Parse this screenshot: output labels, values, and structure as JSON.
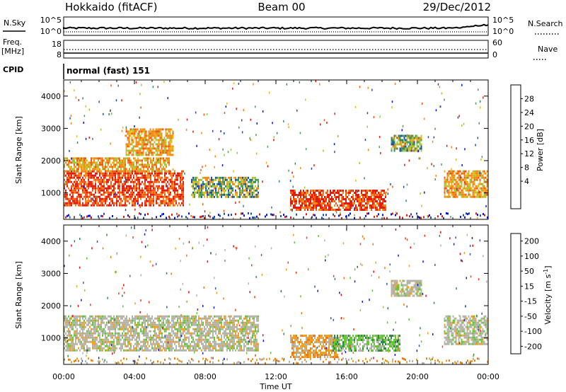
{
  "header": {
    "left": "Hokkaido (fitACF)",
    "center": "Beam 00",
    "right": "29/Dec/2012"
  },
  "top_panels": {
    "nsky_label": "N.Sky",
    "nsky_ticks": [
      "10^5",
      "10^0"
    ],
    "nsearch_label": "N.Search",
    "nsearch_ticks": [
      "10^5",
      "10^0"
    ],
    "freq_label_1": "Freq.",
    "freq_label_2": "[MHz]",
    "freq_ticks": [
      "18",
      "8"
    ],
    "nave_label": "Nave",
    "nave_ticks": [
      "60",
      "0"
    ],
    "cpid_label": "CPID",
    "cpid_value": "normal (fast) 151"
  },
  "colors": {
    "power": [
      "#0018e0",
      "#1e4cb0",
      "#2f8a66",
      "#4aa05a",
      "#9cc83c",
      "#e8b81a",
      "#f58a18",
      "#f05a14",
      "#e01e10"
    ],
    "velocity": [
      "#1020c8",
      "#2a60a8",
      "#2f8a4a",
      "#64c832",
      "#b4b4aa",
      "#f0a020",
      "#f07a10",
      "#f04010",
      "#e01010"
    ]
  },
  "chart_data": [
    {
      "type": "heatmap",
      "ylabel": "Slant Range [km]",
      "ylim": [
        180,
        4500
      ],
      "y_ticks": [
        "4000",
        "3000",
        "2000",
        "1000"
      ],
      "x_ticks": [
        "00:00",
        "04:00",
        "08:00",
        "12:00",
        "16:00",
        "20:00",
        "00:00"
      ],
      "xlim": [
        "00:00",
        "24:00"
      ],
      "colorbar": {
        "label": "Power [dB]",
        "ticks": [
          "28",
          "24",
          "20",
          "16",
          "12",
          "8",
          "4"
        ],
        "range": [
          0,
          32
        ]
      },
      "regions": [
        {
          "t": [
            0.0,
            6.8
          ],
          "r": [
            600,
            1700
          ],
          "level": "red"
        },
        {
          "t": [
            0.0,
            6.0
          ],
          "r": [
            1700,
            2100
          ],
          "level": "orange"
        },
        {
          "t": [
            3.5,
            6.2
          ],
          "r": [
            2200,
            3000
          ],
          "level": "orange"
        },
        {
          "t": [
            7.2,
            11.0
          ],
          "r": [
            900,
            1500
          ],
          "level": "orange-green"
        },
        {
          "t": [
            12.8,
            18.2
          ],
          "r": [
            500,
            1100
          ],
          "level": "red"
        },
        {
          "t": [
            18.5,
            20.2
          ],
          "r": [
            2300,
            2800
          ],
          "level": "orange-green"
        },
        {
          "t": [
            21.5,
            24.0
          ],
          "r": [
            900,
            1700
          ],
          "level": "orange"
        }
      ]
    },
    {
      "type": "heatmap",
      "ylabel": "Slant Range [km]",
      "ylim": [
        180,
        4500
      ],
      "y_ticks": [
        "4000",
        "3000",
        "2000",
        "1000"
      ],
      "x_ticks": [
        "00:00",
        "04:00",
        "08:00",
        "12:00",
        "16:00",
        "20:00",
        "00:00"
      ],
      "xlabel": "Time UT",
      "xlim": [
        "00:00",
        "24:00"
      ],
      "colorbar": {
        "label": "Velocity [m s^-1]",
        "ticks": [
          "200",
          "100",
          "50",
          "15",
          "-15",
          "-50",
          "-100",
          "-200"
        ],
        "range": [
          -250,
          250
        ]
      },
      "regions": [
        {
          "t": [
            0.0,
            11.0
          ],
          "r": [
            600,
            1700
          ],
          "level": "gray"
        },
        {
          "t": [
            12.8,
            15.5
          ],
          "r": [
            400,
            1100
          ],
          "level": "orange"
        },
        {
          "t": [
            15.2,
            19.0
          ],
          "r": [
            600,
            1100
          ],
          "level": "green"
        },
        {
          "t": [
            18.5,
            20.2
          ],
          "r": [
            2300,
            2800
          ],
          "level": "gray"
        },
        {
          "t": [
            21.5,
            24.0
          ],
          "r": [
            800,
            1700
          ],
          "level": "gray"
        }
      ]
    }
  ]
}
